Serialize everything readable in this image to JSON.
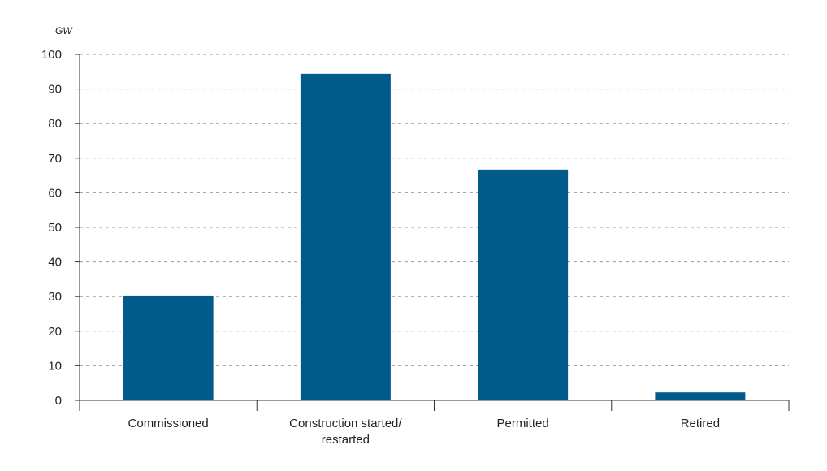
{
  "chart_data": {
    "type": "bar",
    "title": "",
    "xlabel": "",
    "ylabel": "GW",
    "ylim": [
      0,
      100
    ],
    "yticks": [
      0,
      10,
      20,
      30,
      40,
      50,
      60,
      70,
      80,
      90,
      100
    ],
    "grid": "horizontal dashed",
    "categories": [
      [
        "Commissioned"
      ],
      [
        "Construction started/",
        "restarted"
      ],
      [
        "Permitted"
      ],
      [
        "Retired"
      ]
    ],
    "values": [
      30.3,
      94.4,
      66.7,
      2.3
    ],
    "colors": {
      "bar": "#005b8c",
      "axis": "#333333",
      "grid": "#9a9a9a"
    }
  }
}
